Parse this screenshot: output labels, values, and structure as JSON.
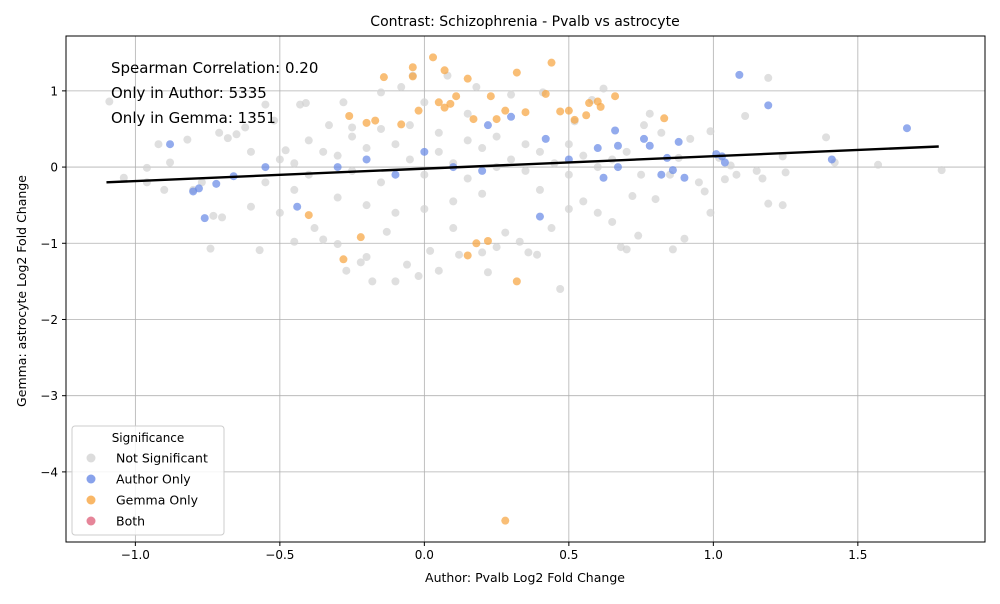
{
  "chart_data": {
    "type": "scatter",
    "title": "Contrast: Schizophrenia - Pvalb vs astrocyte",
    "xlabel": "Author: Pvalb Log2 Fold Change",
    "ylabel": "Gemma: astrocyte Log2 Fold Change",
    "xlim": [
      -1.24,
      1.94
    ],
    "ylim": [
      -4.92,
      1.72
    ],
    "xticks": [
      -1.0,
      -0.5,
      0.0,
      0.5,
      1.0,
      1.5
    ],
    "xtick_labels": [
      "−1.0",
      "−0.5",
      "0.0",
      "0.5",
      "1.0",
      "1.5"
    ],
    "yticks": [
      -4,
      -3,
      -2,
      -1,
      0,
      1
    ],
    "ytick_labels": [
      "−4",
      "−3",
      "−2",
      "−1",
      "0",
      "1"
    ],
    "grid": true,
    "annotations": [
      "Spearman Correlation: 0.20",
      "Only in Author: 5335",
      "Only in Gemma: 1351"
    ],
    "legend": {
      "title": "Significance",
      "placement": "lower-left",
      "entries": [
        {
          "label": "Not Significant",
          "color": "#d3d3d3"
        },
        {
          "label": "Author Only",
          "color": "#6a8be6"
        },
        {
          "label": "Gemma Only",
          "color": "#f7a541"
        },
        {
          "label": "Both",
          "color": "#e06680"
        }
      ]
    },
    "fit_line": {
      "x": [
        -1.1,
        1.78
      ],
      "y": [
        -0.2,
        0.27
      ],
      "color": "#000000"
    },
    "series": [
      {
        "name": "Not Significant",
        "color": "#d3d3d3",
        "points": [
          [
            -1.09,
            0.86
          ],
          [
            -1.04,
            -0.14
          ],
          [
            -0.96,
            -0.01
          ],
          [
            -0.96,
            -0.2
          ],
          [
            -0.9,
            -0.3
          ],
          [
            -0.88,
            0.06
          ],
          [
            -0.92,
            0.3
          ],
          [
            -0.82,
            0.36
          ],
          [
            -0.8,
            -0.3
          ],
          [
            -0.77,
            -0.2
          ],
          [
            -0.74,
            -1.07
          ],
          [
            -0.73,
            -0.64
          ],
          [
            -0.71,
            0.45
          ],
          [
            -0.7,
            -0.66
          ],
          [
            -0.68,
            0.38
          ],
          [
            -0.65,
            0.43
          ],
          [
            -0.62,
            0.52
          ],
          [
            -0.6,
            -0.52
          ],
          [
            -0.57,
            -1.09
          ],
          [
            -0.55,
            0.82
          ],
          [
            -0.52,
            0.61
          ],
          [
            -0.5,
            -0.6
          ],
          [
            -0.48,
            0.22
          ],
          [
            -0.45,
            -0.98
          ],
          [
            -0.43,
            0.82
          ],
          [
            -0.41,
            0.84
          ],
          [
            -0.38,
            -0.8
          ],
          [
            -0.35,
            -0.95
          ],
          [
            -0.33,
            0.55
          ],
          [
            -0.3,
            -1.01
          ],
          [
            -0.28,
            0.85
          ],
          [
            -0.27,
            -1.36
          ],
          [
            -0.25,
            0.52
          ],
          [
            -0.22,
            -1.25
          ],
          [
            -0.2,
            -1.18
          ],
          [
            -0.18,
            -1.5
          ],
          [
            -0.15,
            0.98
          ],
          [
            -0.13,
            -0.85
          ],
          [
            -0.1,
            -1.5
          ],
          [
            -0.08,
            1.05
          ],
          [
            -0.06,
            -1.28
          ],
          [
            -0.04,
            1.2
          ],
          [
            -0.02,
            -1.43
          ],
          [
            0.0,
            0.85
          ],
          [
            0.02,
            -1.1
          ],
          [
            0.05,
            -1.36
          ],
          [
            0.08,
            1.2
          ],
          [
            0.1,
            -0.8
          ],
          [
            0.12,
            -1.15
          ],
          [
            0.15,
            0.7
          ],
          [
            0.18,
            1.05
          ],
          [
            0.2,
            -1.12
          ],
          [
            0.22,
            -1.38
          ],
          [
            0.25,
            -1.05
          ],
          [
            0.28,
            -0.86
          ],
          [
            0.3,
            0.95
          ],
          [
            0.33,
            -0.98
          ],
          [
            0.36,
            -1.12
          ],
          [
            0.39,
            -1.15
          ],
          [
            0.41,
            0.98
          ],
          [
            0.44,
            -0.8
          ],
          [
            0.47,
            -1.6
          ],
          [
            0.5,
            -0.55
          ],
          [
            0.52,
            0.6
          ],
          [
            0.55,
            -0.45
          ],
          [
            0.58,
            0.88
          ],
          [
            0.6,
            -0.6
          ],
          [
            0.62,
            1.03
          ],
          [
            0.65,
            -0.72
          ],
          [
            0.68,
            -1.05
          ],
          [
            0.7,
            -1.08
          ],
          [
            0.72,
            -0.38
          ],
          [
            0.74,
            -0.9
          ],
          [
            0.76,
            0.55
          ],
          [
            0.78,
            0.7
          ],
          [
            0.8,
            -0.42
          ],
          [
            0.82,
            0.45
          ],
          [
            0.85,
            -0.1
          ],
          [
            0.86,
            -1.08
          ],
          [
            0.88,
            0.12
          ],
          [
            0.9,
            -0.94
          ],
          [
            0.92,
            0.37
          ],
          [
            0.95,
            -0.2
          ],
          [
            0.97,
            -0.32
          ],
          [
            0.99,
            0.47
          ],
          [
            0.99,
            -0.6
          ],
          [
            1.02,
            0.12
          ],
          [
            1.04,
            -0.16
          ],
          [
            1.06,
            0.02
          ],
          [
            1.08,
            -0.1
          ],
          [
            1.11,
            0.67
          ],
          [
            1.15,
            -0.05
          ],
          [
            1.17,
            -0.15
          ],
          [
            1.19,
            1.17
          ],
          [
            1.19,
            -0.48
          ],
          [
            1.24,
            0.14
          ],
          [
            1.24,
            -0.5
          ],
          [
            1.25,
            -0.07
          ],
          [
            1.39,
            0.39
          ],
          [
            1.42,
            0.06
          ],
          [
            1.57,
            0.03
          ],
          [
            1.79,
            -0.04
          ],
          [
            -0.5,
            0.1
          ],
          [
            -0.45,
            0.05
          ],
          [
            -0.4,
            -0.1
          ],
          [
            -0.35,
            0.2
          ],
          [
            -0.3,
            0.15
          ],
          [
            -0.25,
            -0.05
          ],
          [
            -0.2,
            0.25
          ],
          [
            -0.15,
            -0.2
          ],
          [
            -0.1,
            0.3
          ],
          [
            -0.05,
            0.1
          ],
          [
            0.0,
            -0.1
          ],
          [
            0.05,
            0.2
          ],
          [
            0.1,
            0.05
          ],
          [
            0.15,
            -0.15
          ],
          [
            0.2,
            0.25
          ],
          [
            0.25,
            0.0
          ],
          [
            0.3,
            0.1
          ],
          [
            0.35,
            -0.05
          ],
          [
            0.4,
            0.2
          ],
          [
            0.45,
            0.05
          ],
          [
            0.5,
            -0.1
          ],
          [
            0.55,
            0.15
          ],
          [
            0.6,
            0.0
          ],
          [
            0.65,
            0.1
          ],
          [
            -0.3,
            -0.4
          ],
          [
            -0.2,
            -0.5
          ],
          [
            -0.1,
            -0.6
          ],
          [
            0.0,
            -0.55
          ],
          [
            0.1,
            -0.45
          ],
          [
            0.2,
            -0.35
          ],
          [
            -0.25,
            0.4
          ],
          [
            -0.15,
            0.5
          ],
          [
            -0.05,
            0.55
          ],
          [
            0.05,
            0.45
          ],
          [
            0.15,
            0.35
          ],
          [
            0.25,
            0.4
          ],
          [
            0.35,
            0.3
          ],
          [
            -0.4,
            0.35
          ],
          [
            -0.45,
            -0.3
          ],
          [
            0.4,
            -0.3
          ],
          [
            0.5,
            0.3
          ],
          [
            -0.6,
            0.2
          ],
          [
            -0.55,
            -0.2
          ],
          [
            0.7,
            0.2
          ],
          [
            0.75,
            -0.1
          ]
        ]
      },
      {
        "name": "Author Only",
        "color": "#6a8be6",
        "points": [
          [
            -0.88,
            0.3
          ],
          [
            -0.8,
            -0.32
          ],
          [
            -0.78,
            -0.28
          ],
          [
            -0.76,
            -0.67
          ],
          [
            -0.72,
            -0.22
          ],
          [
            -0.66,
            -0.12
          ],
          [
            -0.55,
            0.0
          ],
          [
            -0.44,
            -0.52
          ],
          [
            -0.3,
            0.0
          ],
          [
            -0.2,
            0.1
          ],
          [
            -0.1,
            -0.1
          ],
          [
            0.0,
            0.2
          ],
          [
            0.1,
            0.0
          ],
          [
            0.2,
            -0.05
          ],
          [
            0.22,
            0.55
          ],
          [
            0.3,
            0.66
          ],
          [
            0.4,
            -0.65
          ],
          [
            0.42,
            0.37
          ],
          [
            0.5,
            0.1
          ],
          [
            0.6,
            0.25
          ],
          [
            0.62,
            -0.14
          ],
          [
            0.66,
            0.48
          ],
          [
            0.67,
            0.0
          ],
          [
            0.67,
            0.28
          ],
          [
            0.76,
            0.37
          ],
          [
            0.78,
            0.28
          ],
          [
            0.82,
            -0.1
          ],
          [
            0.84,
            0.12
          ],
          [
            0.86,
            -0.04
          ],
          [
            0.88,
            0.33
          ],
          [
            0.9,
            -0.14
          ],
          [
            1.01,
            0.17
          ],
          [
            1.03,
            0.14
          ],
          [
            1.04,
            0.06
          ],
          [
            1.09,
            1.21
          ],
          [
            1.19,
            0.81
          ],
          [
            1.41,
            0.1
          ],
          [
            1.67,
            0.51
          ]
        ]
      },
      {
        "name": "Gemma Only",
        "color": "#f7a541",
        "points": [
          [
            -0.4,
            -0.63
          ],
          [
            -0.28,
            -1.21
          ],
          [
            -0.26,
            0.67
          ],
          [
            -0.22,
            -0.92
          ],
          [
            -0.2,
            0.58
          ],
          [
            -0.17,
            0.61
          ],
          [
            -0.14,
            1.18
          ],
          [
            -0.08,
            0.56
          ],
          [
            -0.04,
            1.19
          ],
          [
            -0.04,
            1.31
          ],
          [
            -0.02,
            0.74
          ],
          [
            0.03,
            1.44
          ],
          [
            0.05,
            0.85
          ],
          [
            0.07,
            1.27
          ],
          [
            0.07,
            0.78
          ],
          [
            0.09,
            0.83
          ],
          [
            0.11,
            0.93
          ],
          [
            0.15,
            -1.16
          ],
          [
            0.15,
            1.16
          ],
          [
            0.17,
            0.63
          ],
          [
            0.18,
            -1.0
          ],
          [
            0.22,
            -0.97
          ],
          [
            0.23,
            0.93
          ],
          [
            0.25,
            0.63
          ],
          [
            0.28,
            -4.64
          ],
          [
            0.28,
            0.74
          ],
          [
            0.32,
            -1.5
          ],
          [
            0.32,
            1.24
          ],
          [
            0.35,
            0.72
          ],
          [
            0.42,
            0.96
          ],
          [
            0.44,
            1.37
          ],
          [
            0.47,
            0.73
          ],
          [
            0.5,
            0.74
          ],
          [
            0.52,
            0.62
          ],
          [
            0.56,
            0.68
          ],
          [
            0.57,
            0.84
          ],
          [
            0.6,
            0.86
          ],
          [
            0.61,
            0.79
          ],
          [
            0.66,
            0.93
          ],
          [
            0.83,
            0.64
          ]
        ]
      },
      {
        "name": "Both",
        "color": "#e06680",
        "points": []
      }
    ]
  }
}
